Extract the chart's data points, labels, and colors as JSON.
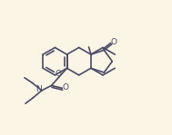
{
  "bg_color": "#fbf5e6",
  "line_color": "#4a4a6a",
  "line_width": 1.2,
  "figsize": [
    1.89,
    1.49
  ],
  "dpi": 100,
  "xlim": [
    0,
    9.5
  ],
  "ylim": [
    0,
    7.5
  ]
}
